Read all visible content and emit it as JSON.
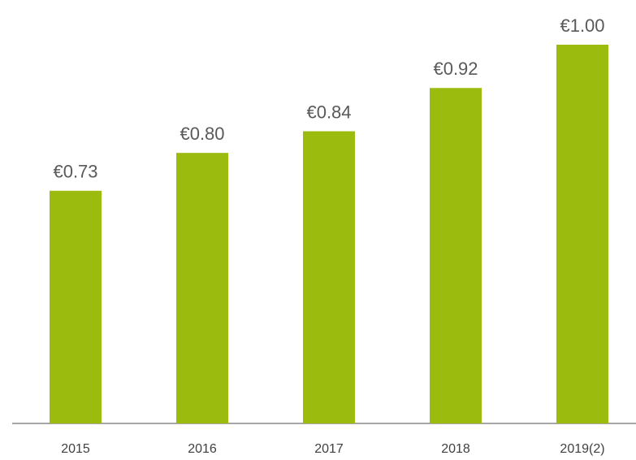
{
  "chart_data": {
    "type": "bar",
    "categories": [
      "2015",
      "2016",
      "2017",
      "2018",
      "2019(2)"
    ],
    "values": [
      0.73,
      0.8,
      0.84,
      0.92,
      1.0
    ],
    "value_labels": [
      "€0.73",
      "€0.80",
      "€0.84",
      "€0.92",
      "€1.00"
    ],
    "color": "#9bbb0f",
    "ylim": [
      0.3,
      1.0
    ]
  }
}
